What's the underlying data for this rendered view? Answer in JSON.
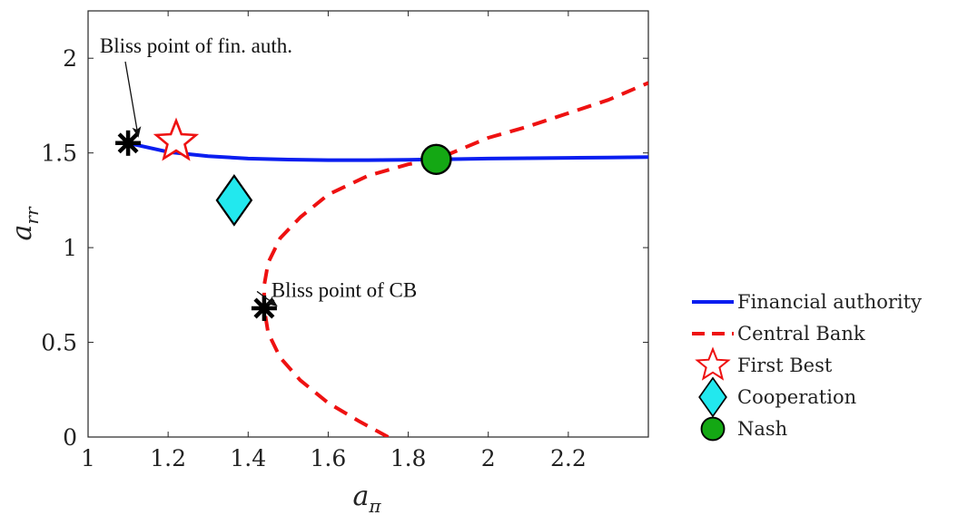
{
  "chart_data": {
    "type": "line",
    "title": "",
    "xlabel": "a",
    "xlabel_sub": "π",
    "ylabel": "a",
    "ylabel_sub": "rr",
    "xlim": [
      1.0,
      2.4
    ],
    "ylim": [
      0.0,
      2.25
    ],
    "xticks": [
      1,
      1.2,
      1.4,
      1.6,
      1.8,
      2,
      2.2
    ],
    "xtick_labels": [
      "1",
      "1.2",
      "1.4",
      "1.6",
      "1.8",
      "2",
      "2.2"
    ],
    "yticks": [
      0,
      0.5,
      1,
      1.5,
      2
    ],
    "ytick_labels": [
      "0",
      "0.5",
      "1",
      "1.5",
      "2"
    ],
    "grid": false,
    "legend_position": "outside-right-bottom",
    "series": [
      {
        "name": "Financial authority",
        "style": "solid",
        "color": "#0a1ef0",
        "x": [
          1.1,
          1.2,
          1.3,
          1.4,
          1.5,
          1.6,
          1.7,
          1.8,
          1.87,
          2.0,
          2.1,
          2.2,
          2.3,
          2.4
        ],
        "y": [
          1.552,
          1.505,
          1.483,
          1.47,
          1.465,
          1.462,
          1.462,
          1.464,
          1.466,
          1.47,
          1.472,
          1.474,
          1.476,
          1.478
        ]
      },
      {
        "name": "Central Bank",
        "style": "dashed",
        "color": "#ee1111",
        "x": [
          1.75,
          1.68,
          1.6,
          1.53,
          1.48,
          1.45,
          1.44,
          1.44,
          1.45,
          1.48,
          1.53,
          1.6,
          1.7,
          1.8,
          1.87,
          2.0,
          2.1,
          2.2,
          2.3,
          2.4
        ],
        "y": [
          0.0,
          0.08,
          0.18,
          0.3,
          0.42,
          0.55,
          0.68,
          0.8,
          0.92,
          1.05,
          1.16,
          1.28,
          1.38,
          1.44,
          1.466,
          1.58,
          1.64,
          1.71,
          1.78,
          1.87
        ]
      }
    ],
    "markers": [
      {
        "name": "First Best",
        "shape": "star",
        "x": 1.22,
        "y": 1.56,
        "fill": "#ffffff",
        "stroke": "#ee1111"
      },
      {
        "name": "Cooperation",
        "shape": "diamond",
        "x": 1.365,
        "y": 1.25,
        "fill": "#22e8ee",
        "stroke": "#000000"
      },
      {
        "name": "Nash",
        "shape": "circle",
        "x": 1.87,
        "y": 1.466,
        "fill": "#14a814",
        "stroke": "#000000"
      }
    ],
    "bliss_points": [
      {
        "shape": "asterisk",
        "x": 1.1,
        "y": 1.552
      },
      {
        "shape": "asterisk",
        "x": 1.44,
        "y": 0.68
      }
    ],
    "annotations": [
      {
        "text": "Bliss point of fin. auth.",
        "text_x": 1.27,
        "text_y": 2.03,
        "target_x": 1.125,
        "target_y": 1.59
      },
      {
        "text": "Bliss point of CB",
        "text_x": 1.64,
        "text_y": 0.74,
        "target_x": 1.47,
        "target_y": 0.695
      }
    ]
  }
}
